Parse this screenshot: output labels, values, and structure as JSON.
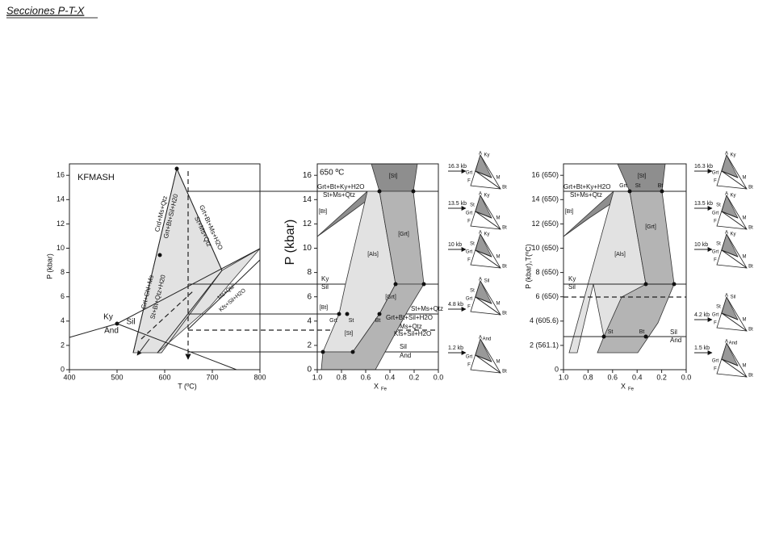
{
  "header": {
    "title": "Secciones P-T-X"
  },
  "pt_panel": {
    "name": "KFMASH",
    "x_title": "T (ºC)",
    "x_ticks": [
      "400",
      "500",
      "600",
      "700",
      "800"
    ],
    "y_title": "P (kbar)",
    "y_ticks": [
      "0",
      "2",
      "4",
      "6",
      "8",
      "10",
      "12",
      "14",
      "16"
    ],
    "phases": [
      "Ky",
      "Sil",
      "And"
    ],
    "reactions": [
      "Crd+Ms+Qtz",
      "Grt+Bt+Sil+H20",
      "Grt+Bt+Ms+H2O",
      "St+Ms+Qtz",
      "Grt+Chl+Ms",
      "St+Bt+Qtz+H20",
      "Ms+Qtz",
      "Kfs+Sil+H2O"
    ]
  },
  "px_panel": {
    "temperature": "650 ºC",
    "x_title": "X",
    "x_sub": "Fe",
    "x_ticks": [
      "1.0",
      "0.8",
      "0.6",
      "0.4",
      "0.2",
      "0.0"
    ],
    "y_title": "P (kbar)",
    "y_ticks": [
      "0",
      "2",
      "4",
      "6",
      "8",
      "10",
      "12",
      "14",
      "16"
    ],
    "fields": [
      "[St]",
      "[Bt]",
      "[Grt]",
      "[Als]",
      "[Grt]",
      "[Bt]",
      "[St]"
    ],
    "reactions": [
      "Grt+Bt+Ky+H2O",
      "St+Ms+Qtz",
      "Ky",
      "Sil",
      "St+Ms+Qtz",
      "Grt+Bt+Sil+H2O",
      "Ms+Qtz",
      "Kfs+Sil+H2O",
      "Sil",
      "And"
    ],
    "points": [
      "Grt",
      "St",
      "Bt"
    ],
    "triangles": [
      {
        "pressure": "16.3 kb",
        "labels": [
          "A",
          "Ky",
          "Grt",
          "F",
          "M",
          "Bt"
        ]
      },
      {
        "pressure": "13.5 kb",
        "labels": [
          "A",
          "Ky",
          "St",
          "Grt",
          "F",
          "M",
          "Bt"
        ]
      },
      {
        "pressure": "10 kb",
        "labels": [
          "A",
          "Ky",
          "St",
          "Grt",
          "F",
          "M",
          "Bt"
        ]
      },
      {
        "pressure": "4.8 kb",
        "labels": [
          "A",
          "Sil",
          "St",
          "Grt",
          "F",
          "M",
          "Bt"
        ]
      },
      {
        "pressure": "1.2 kb",
        "labels": [
          "A",
          "And",
          "Grt",
          "F",
          "M",
          "Bt"
        ]
      }
    ]
  },
  "ptx_panel": {
    "x_title": "X",
    "x_sub": "Fe",
    "x_ticks": [
      "1.0",
      "0.8",
      "0.6",
      "0.4",
      "0.2",
      "0.0"
    ],
    "y_title": "P (kbar),T(ºC)",
    "y_ticks": [
      "0",
      "2 (561.1)",
      "4 (605.6)",
      "6 (650)",
      "8 (650)",
      "10 (650)",
      "12 (650)",
      "14 (650)",
      "16 (650)"
    ],
    "fields": [
      "[St]",
      "[Bt]",
      "[Grt]",
      "[Als]"
    ],
    "reactions": [
      "Grt+Bt+Ky+H2O",
      "St+Ms+Qtz",
      "Ky",
      "Sil",
      "Sil",
      "And"
    ],
    "points_top": [
      "Grt",
      "St",
      "Bt"
    ],
    "points_bottom": [
      "St",
      "Bt"
    ],
    "triangles": [
      {
        "pressure": "16.3 kb",
        "labels": [
          "A",
          "Ky",
          "Grt",
          "F",
          "M",
          "Bt"
        ]
      },
      {
        "pressure": "13.5 kb",
        "labels": [
          "A",
          "Ky",
          "St",
          "Grt",
          "F",
          "M",
          "Bt"
        ]
      },
      {
        "pressure": "10 kb",
        "labels": [
          "A",
          "Ky",
          "St",
          "Grt",
          "F",
          "M",
          "Bt"
        ]
      },
      {
        "pressure": "4.2 kb",
        "labels": [
          "A",
          "Sil",
          "St",
          "Grt",
          "F",
          "M",
          "Bt"
        ]
      },
      {
        "pressure": "1.5 kb",
        "labels": [
          "A",
          "And",
          "Grt",
          "F",
          "M",
          "Bt"
        ]
      }
    ]
  }
}
